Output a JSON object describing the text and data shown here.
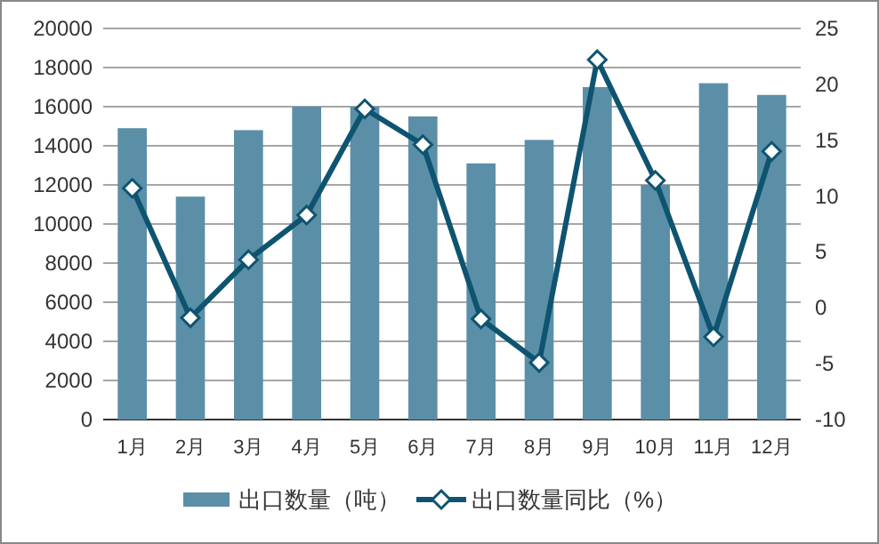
{
  "chart_data": {
    "type": "bar",
    "categories": [
      "1月",
      "2月",
      "3月",
      "4月",
      "5月",
      "6月",
      "7月",
      "8月",
      "9月",
      "10月",
      "11月",
      "12月"
    ],
    "series": [
      {
        "name": "出口数量（吨）",
        "color": "#5b8fa8",
        "values": [
          14900,
          11400,
          14800,
          16000,
          16000,
          15500,
          13100,
          14300,
          17000,
          12000,
          17200,
          16600
        ]
      },
      {
        "name": "出口数量同比（%）",
        "type": "line",
        "axis": "y2",
        "color": "#0e5470",
        "marker": "diamond",
        "values": [
          10.7,
          -0.9,
          4.3,
          8.3,
          17.8,
          14.6,
          -1.0,
          -4.9,
          22.2,
          11.4,
          -2.6,
          14.0
        ]
      }
    ],
    "ylim": [
      0,
      20000
    ],
    "yticks": [
      0,
      2000,
      4000,
      6000,
      8000,
      10000,
      12000,
      14000,
      16000,
      18000,
      20000
    ],
    "y2lim": [
      -10,
      25
    ],
    "y2ticks": [
      -10,
      -5,
      0,
      5,
      10,
      15,
      20,
      25
    ],
    "grid": "y",
    "legend": "bottom"
  }
}
